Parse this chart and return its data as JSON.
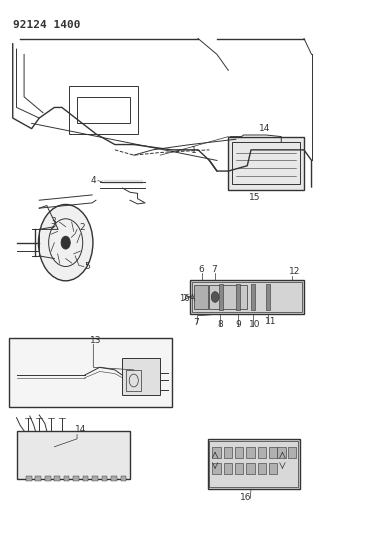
{
  "title": "92124 1400",
  "bg_color": "#ffffff",
  "line_color": "#333333",
  "fig_width": 3.81,
  "fig_height": 5.33,
  "dpi": 100
}
